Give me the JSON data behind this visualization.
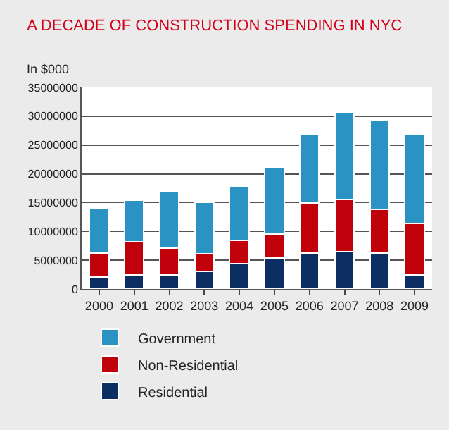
{
  "chart_data": {
    "type": "bar",
    "stacked": true,
    "title": "A DECADE OF CONSTRUCTION SPENDING IN NYC",
    "ylabel": "In $000",
    "categories": [
      "2000",
      "2001",
      "2002",
      "2003",
      "2004",
      "2005",
      "2006",
      "2007",
      "2008",
      "2009"
    ],
    "series": [
      {
        "name": "Residential",
        "color": "#0d2e63",
        "values": [
          2100000,
          2400000,
          2400000,
          3000000,
          4400000,
          5400000,
          6200000,
          6500000,
          6300000,
          2500000
        ]
      },
      {
        "name": "Non-Residential",
        "color": "#c0000b",
        "values": [
          4100000,
          5800000,
          4700000,
          3100000,
          4100000,
          4200000,
          8700000,
          9100000,
          7500000,
          8900000
        ]
      },
      {
        "name": "Government",
        "color": "#2a93c4",
        "values": [
          7900000,
          7200000,
          9900000,
          9000000,
          9400000,
          11400000,
          11900000,
          15100000,
          15400000,
          15500000
        ]
      }
    ],
    "ylim": [
      0,
      35000000
    ],
    "yticks": [
      0,
      5000000,
      10000000,
      15000000,
      20000000,
      25000000,
      30000000,
      35000000
    ],
    "grid": "y",
    "legend": "bottom left"
  }
}
